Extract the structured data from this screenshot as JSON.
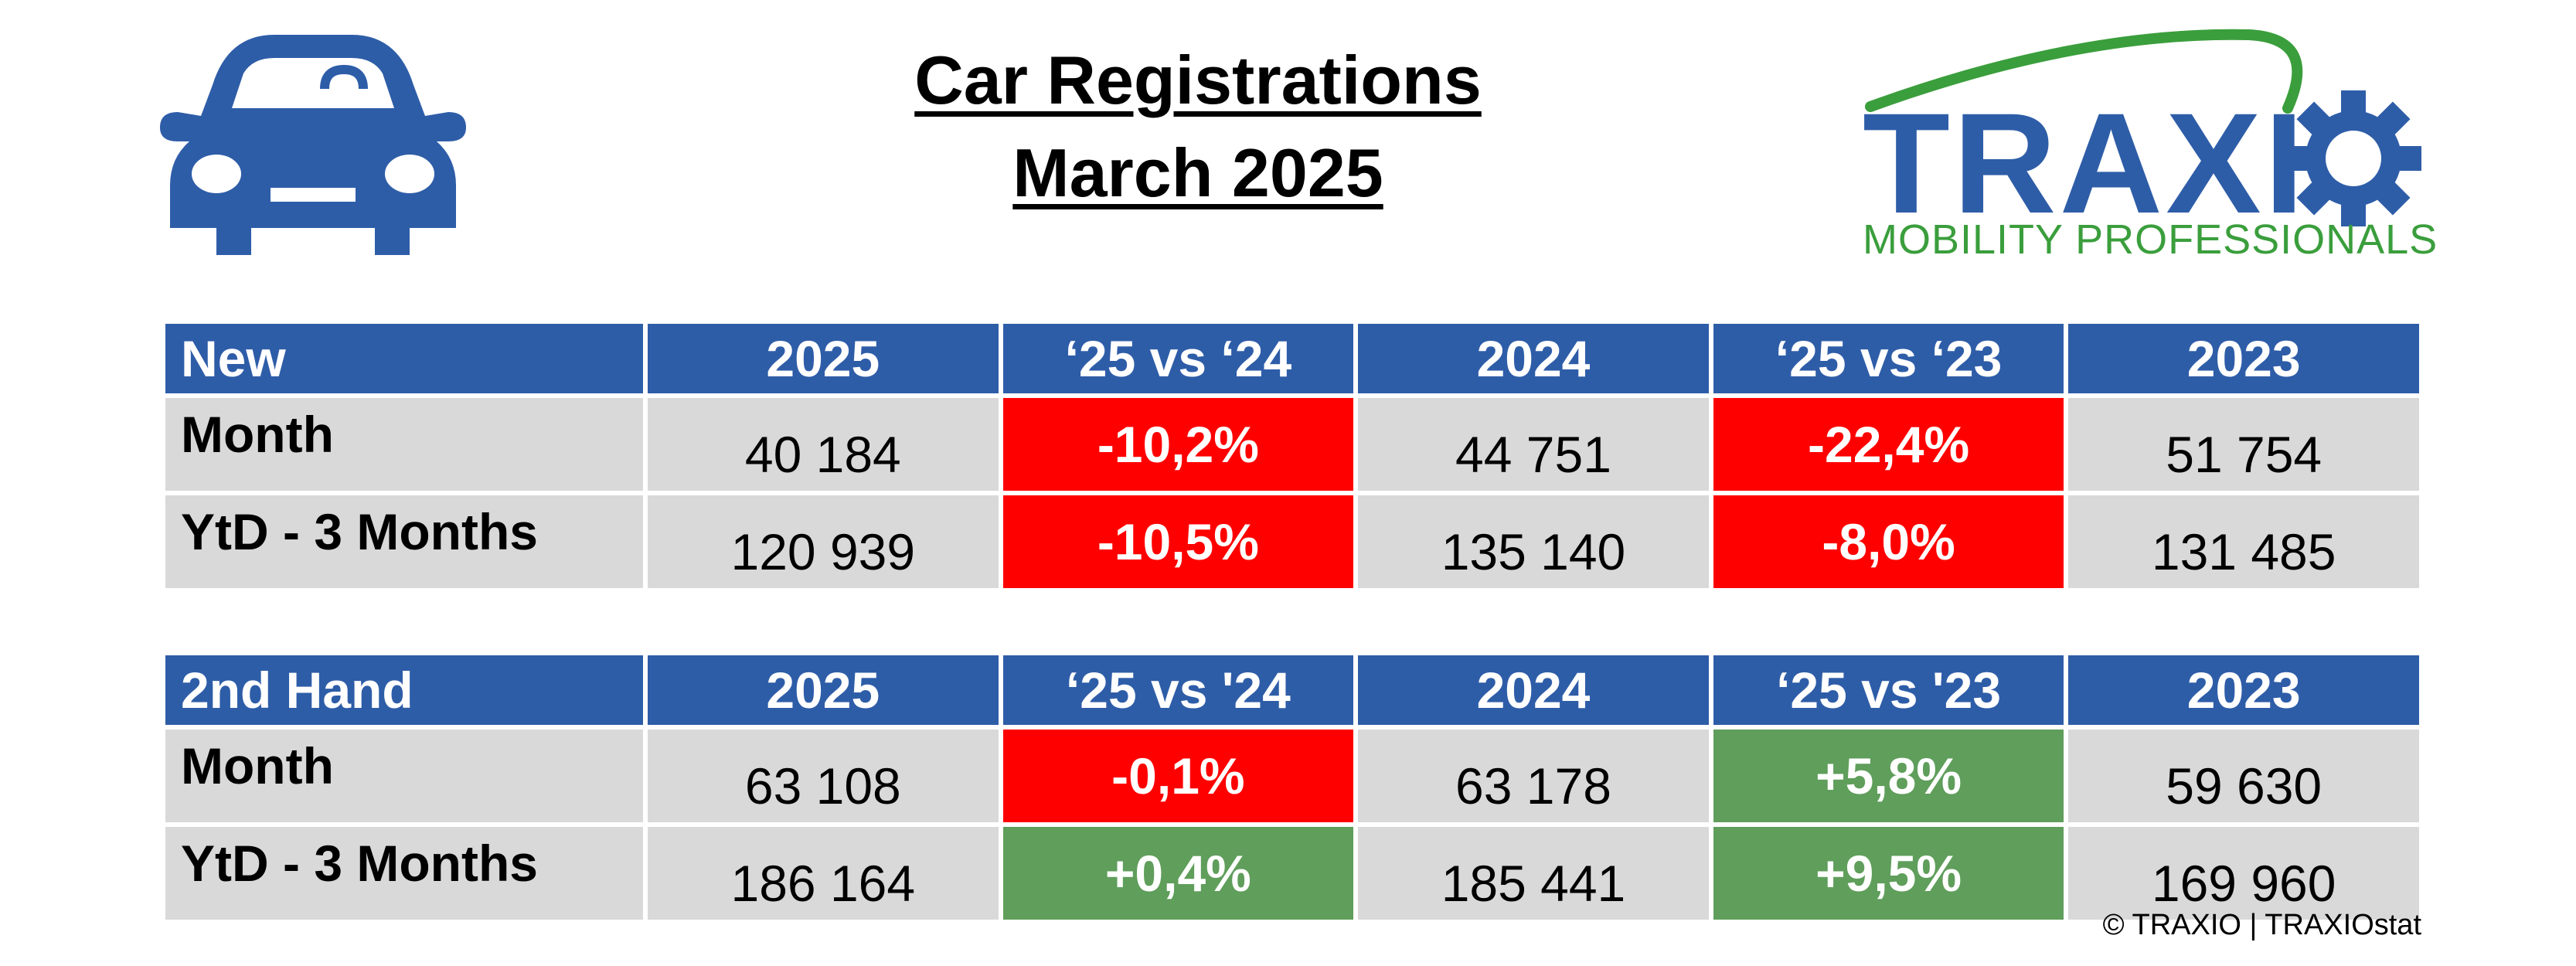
{
  "title_line1": "Car Registrations",
  "title_line2": "March 2025",
  "logo": {
    "word": "TRAXIO",
    "tagline": "MOBILITY PROFESSIONALS",
    "color_blue": "#2e5da8",
    "color_green": "#3a9e3c"
  },
  "colors": {
    "header": "#2e5da8",
    "cell": "#d9d9d9",
    "negative": "#ff0000",
    "positive": "#5f9e5b"
  },
  "new_table": {
    "headers": [
      "New",
      "2025",
      "‘25 vs ‘24",
      "2024",
      "‘25 vs ‘23",
      "2023"
    ],
    "rows": [
      {
        "label": "Month",
        "v2025": "40 184",
        "p24": "-10,2%",
        "p24_status": "negative",
        "v2024": "44 751",
        "p23": "-22,4%",
        "p23_status": "negative",
        "v2023": "51 754"
      },
      {
        "label": "YtD - 3 Months",
        "v2025": "120 939",
        "p24": "-10,5%",
        "p24_status": "negative",
        "v2024": "135 140",
        "p23": "-8,0%",
        "p23_status": "negative",
        "v2023": "131 485"
      }
    ]
  },
  "used_table": {
    "headers": [
      "2nd Hand",
      "2025",
      "‘25 vs '24",
      "2024",
      "‘25 vs '23",
      "2023"
    ],
    "rows": [
      {
        "label": "Month",
        "v2025": "63 108",
        "p24": "-0,1%",
        "p24_status": "negative",
        "v2024": "63 178",
        "p23": "+5,8%",
        "p23_status": "positive",
        "v2023": "59 630"
      },
      {
        "label": "YtD - 3 Months",
        "v2025": "186 164",
        "p24": "+0,4%",
        "p24_status": "positive",
        "v2024": "185 441",
        "p23": "+9,5%",
        "p23_status": "positive",
        "v2023": "169 960"
      }
    ]
  },
  "copyright": "© TRAXIO | TRAXIOstat"
}
